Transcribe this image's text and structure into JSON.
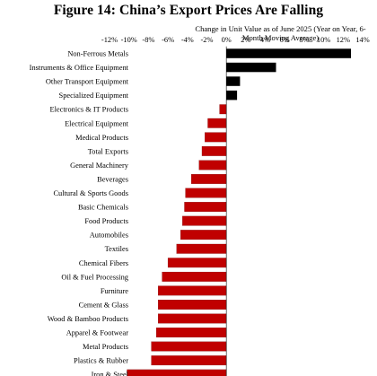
{
  "chart_data": {
    "type": "bar",
    "orientation": "horizontal",
    "title": "Figure 14: China’s Export Prices Are Falling",
    "subtitle": "Change in Unit Value as of June 2025 (Year on Year, 6-Month Moving Average)",
    "xlabel": "",
    "ylabel": "",
    "xlim": [
      -12,
      14
    ],
    "x_ticks": [
      -12,
      -10,
      -8,
      -6,
      -4,
      -2,
      0,
      2,
      4,
      6,
      8,
      10,
      12,
      14
    ],
    "tick_suffix": "%",
    "grid": false,
    "legend": "none",
    "colors": {
      "positive": "#000000",
      "negative": "#c00000"
    },
    "categories": [
      "Non-Ferrous Metals",
      "Instruments & Office Equipment",
      "Other Transport Equipment",
      "Specialized Equipment",
      "Electronics & IT Products",
      "Electrical Equipment",
      "Medical Products",
      "Total Exports",
      "General Machinery",
      "Beverages",
      "Cultural & Sports Goods",
      "Basic Chemicals",
      "Food Products",
      "Automobiles",
      "Textiles",
      "Chemical Fibers",
      "Oil & Fuel Processing",
      "Furniture",
      "Cement & Glass",
      "Wood & Bamboo Products",
      "Apparel & Footwear",
      "Metal Products",
      "Plastics & Rubber",
      "Iron & Steel"
    ],
    "values": [
      12.8,
      5.1,
      1.4,
      1.1,
      -0.7,
      -1.9,
      -2.2,
      -2.5,
      -2.8,
      -3.6,
      -4.2,
      -4.3,
      -4.5,
      -4.7,
      -5.1,
      -6.0,
      -6.6,
      -7.0,
      -7.0,
      -7.0,
      -7.2,
      -7.7,
      -7.7,
      -10.2
    ]
  }
}
